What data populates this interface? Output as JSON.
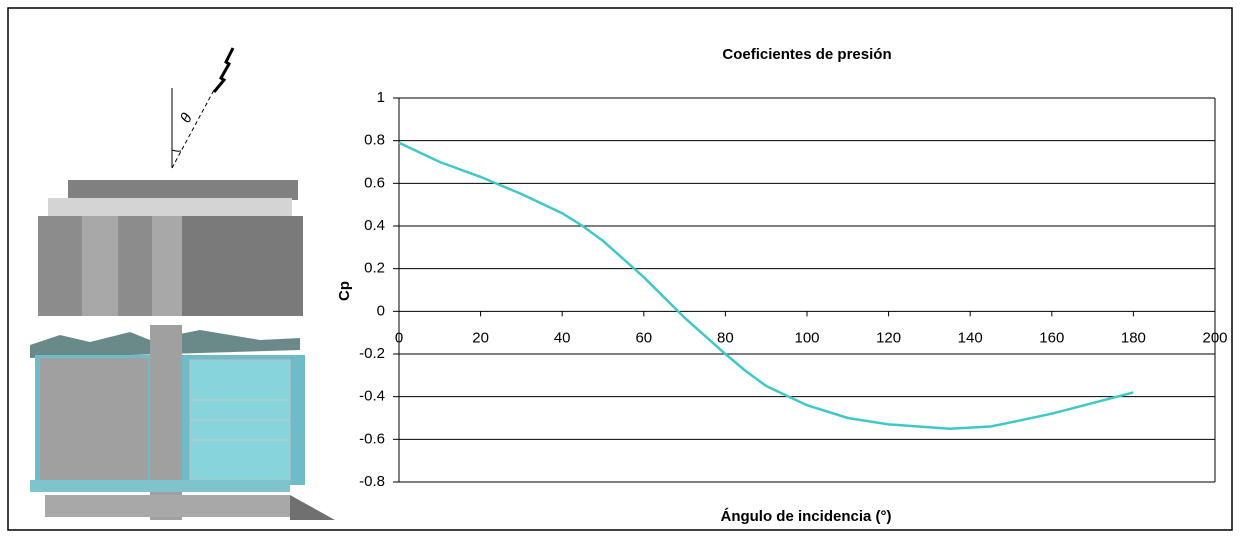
{
  "chart_data": {
    "type": "line",
    "title": "Coeficientes de presión",
    "xlabel": "Ángulo de incidencia (°)",
    "ylabel": "Cp",
    "x": [
      0,
      10,
      20,
      30,
      40,
      45,
      50,
      60,
      70,
      80,
      85,
      90,
      100,
      110,
      120,
      135,
      145,
      150,
      160,
      170,
      180
    ],
    "values": [
      0.79,
      0.7,
      0.63,
      0.55,
      0.46,
      0.4,
      0.33,
      0.16,
      -0.03,
      -0.2,
      -0.28,
      -0.35,
      -0.44,
      -0.5,
      -0.53,
      -0.55,
      -0.54,
      -0.52,
      -0.48,
      -0.43,
      -0.38
    ],
    "color": "#40c8c8",
    "xlim": [
      0,
      200
    ],
    "xticks": [
      0,
      20,
      40,
      60,
      80,
      100,
      120,
      140,
      160,
      180,
      200
    ],
    "ylim": [
      -0.8,
      1
    ],
    "yticks": [
      -0.8,
      -0.6,
      -0.4,
      -0.2,
      0,
      0.2,
      0.4,
      0.6,
      0.8,
      1
    ],
    "grid": true
  },
  "illustration": {
    "angle_label": "θ"
  }
}
